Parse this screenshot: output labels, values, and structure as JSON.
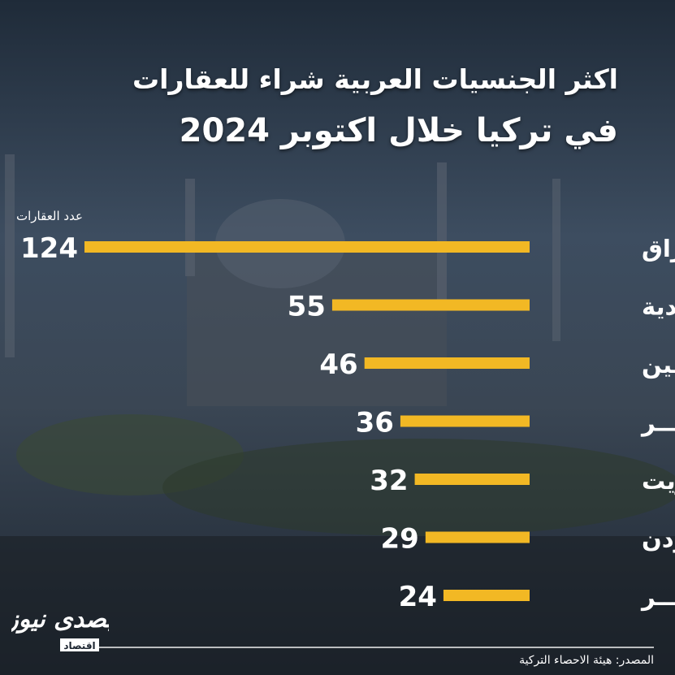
{
  "header": {
    "title_line1": "اكثر الجنسيات العربية شراء للعقارات",
    "title_line2": "في تركيا خلال اكتوبر 2024"
  },
  "units_label": "عدد العقارات",
  "footer": {
    "source": "المصدر: هيئة الاحصاء التركية"
  },
  "logo": {
    "text": "بصدى نيوز",
    "sub": "اقتصاد"
  },
  "colors": {
    "bar": "#f2b824",
    "text": "#ffffff",
    "background": "#2a3645"
  },
  "chart_data": {
    "type": "bar",
    "orientation": "horizontal",
    "title": "اكثر الجنسيات العربية شراء للعقارات في تركيا خلال اكتوبر 2024",
    "ylabel": "",
    "xlabel": "عدد العقارات",
    "categories": [
      "العــــراق",
      "السعودية",
      "فلسطين",
      "مصـــر",
      "الكــويت",
      "الاردن",
      "قطـــر"
    ],
    "values": [
      124,
      55,
      46,
      36,
      32,
      29,
      24
    ],
    "bar_direction": "right-to-left",
    "grid": false,
    "legend": "none"
  }
}
